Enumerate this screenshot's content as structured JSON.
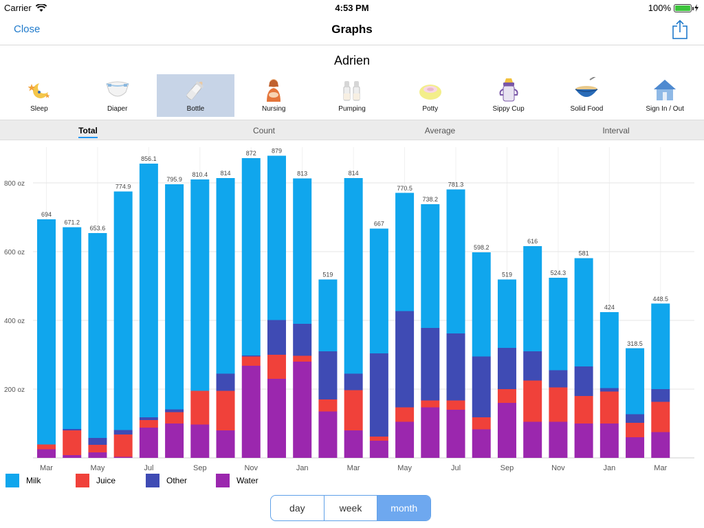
{
  "status_bar": {
    "carrier": "Carrier",
    "time": "4:53 PM",
    "battery": "100%"
  },
  "nav": {
    "close_label": "Close",
    "title": "Graphs"
  },
  "child_name": "Adrien",
  "categories": [
    {
      "label": "Sleep",
      "icon": "moon-stars-icon"
    },
    {
      "label": "Diaper",
      "icon": "diaper-icon"
    },
    {
      "label": "Bottle",
      "icon": "bottle-icon",
      "selected": true
    },
    {
      "label": "Nursing",
      "icon": "nursing-icon"
    },
    {
      "label": "Pumping",
      "icon": "pump-bottles-icon"
    },
    {
      "label": "Potty",
      "icon": "potty-icon"
    },
    {
      "label": "Sippy Cup",
      "icon": "sippy-cup-icon"
    },
    {
      "label": "Solid Food",
      "icon": "food-bowl-icon"
    },
    {
      "label": "Sign In / Out",
      "icon": "house-icon"
    }
  ],
  "tabs": [
    {
      "label": "Total",
      "active": true
    },
    {
      "label": "Count"
    },
    {
      "label": "Average"
    },
    {
      "label": "Interval"
    }
  ],
  "colors": {
    "milk": "#10a6ed",
    "juice": "#f0413a",
    "other": "#3f4bb4",
    "water": "#9b27ae"
  },
  "chart_data": {
    "type": "bar",
    "stacked": true,
    "ylim": [
      0,
      900
    ],
    "yticks": [
      200,
      400,
      600,
      800
    ],
    "ytick_labels": [
      "200 oz",
      "400 oz",
      "600 oz",
      "800 oz"
    ],
    "x_labels": [
      "Mar",
      "",
      "May",
      "",
      "Jul",
      "",
      "Sep",
      "",
      "Nov",
      "",
      "Jan",
      "",
      "Mar",
      "",
      "May",
      "",
      "Jul",
      "",
      "Sep",
      "",
      "Nov",
      "",
      "Jan",
      "",
      "Mar"
    ],
    "totals": [
      "694",
      "671.2",
      "653.6",
      "774.9",
      "856.1",
      "795.9",
      "810.4",
      "814",
      "872",
      "879",
      "813",
      "519",
      "814",
      "667",
      "770.5",
      "738.2",
      "781.3",
      "598.2",
      "519",
      "616",
      "524.3",
      "581",
      "424",
      "318.5",
      "448.5"
    ],
    "series": [
      {
        "name": "Water",
        "color": "#9b27ae",
        "values": [
          25,
          8,
          16,
          3,
          88,
          100,
          97,
          80,
          268,
          230,
          280,
          135,
          80,
          50,
          105,
          147,
          140,
          83,
          160,
          105,
          105,
          100,
          100,
          60,
          75
        ]
      },
      {
        "name": "Juice",
        "color": "#f0413a",
        "values": [
          14,
          72,
          22,
          65,
          22,
          33,
          98,
          115,
          27,
          70,
          17,
          35,
          117,
          12,
          42,
          20,
          27,
          35,
          40,
          120,
          100,
          80,
          93,
          42,
          88
        ]
      },
      {
        "name": "Other",
        "color": "#3f4bb4",
        "values": [
          0,
          4,
          20,
          13,
          8,
          8,
          0,
          50,
          3,
          101,
          93,
          140,
          48,
          242,
          280,
          211,
          195,
          177,
          120,
          85,
          50,
          86,
          10,
          25,
          37
        ]
      },
      {
        "name": "Milk",
        "color": "#10a6ed",
        "values": [
          655,
          587,
          596,
          694,
          738,
          655,
          615,
          569,
          574,
          478,
          423,
          209,
          569,
          363,
          344,
          360,
          419,
          303,
          199,
          306,
          269,
          315,
          221,
          192,
          249
        ]
      }
    ]
  },
  "legend": [
    {
      "label": "Milk",
      "color": "#10a6ed"
    },
    {
      "label": "Juice",
      "color": "#f0413a"
    },
    {
      "label": "Other",
      "color": "#3f4bb4"
    },
    {
      "label": "Water",
      "color": "#9b27ae"
    }
  ],
  "range": [
    {
      "label": "day"
    },
    {
      "label": "week"
    },
    {
      "label": "month",
      "active": true
    }
  ]
}
